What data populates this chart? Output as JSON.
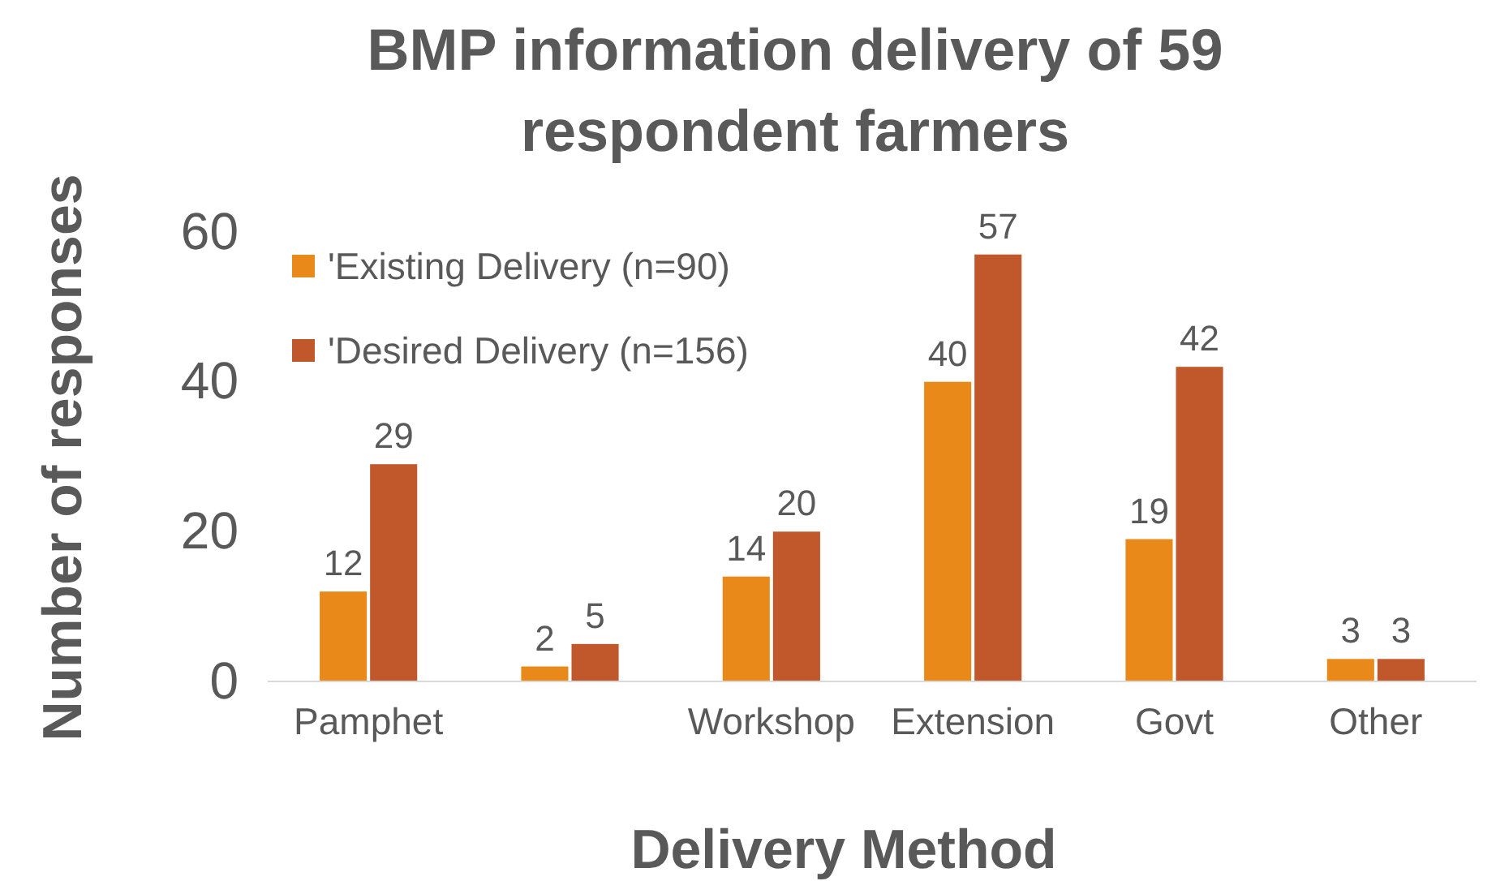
{
  "chart_data": {
    "type": "bar",
    "title": "BMP information delivery of 59 respondent farmers",
    "xlabel": "Delivery Method",
    "ylabel": "Number of responses",
    "categories": [
      "Pamphet",
      null,
      "Workshop",
      "Extension",
      "Govt",
      "Other"
    ],
    "series": [
      {
        "name": "'Existing Delivery (n=90)",
        "color": "#e8891a",
        "values": [
          12,
          2,
          14,
          40,
          19,
          3
        ]
      },
      {
        "name": "'Desired Delivery (n=156)",
        "color": "#c0582b",
        "values": [
          29,
          5,
          20,
          57,
          42,
          3
        ]
      }
    ],
    "ylim": [
      0,
      60
    ],
    "yticks": [
      0,
      20,
      40,
      60
    ],
    "data_labels": true,
    "legend": "top left",
    "grid": false
  }
}
